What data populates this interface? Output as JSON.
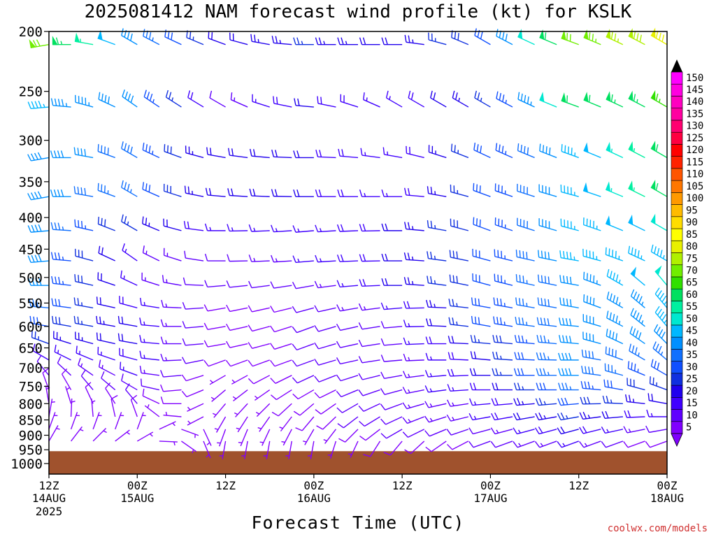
{
  "chart_data": {
    "type": "wind_barb_profile",
    "title": "2025081412 NAM forecast wind profile (kt) for KSLK",
    "xlabel": "Forecast Time (UTC)",
    "credit": "coolwx.com/models",
    "units": "kt",
    "ylevels_hPa": [
      200,
      250,
      300,
      350,
      400,
      450,
      500,
      550,
      600,
      650,
      700,
      750,
      800,
      850,
      900,
      950,
      1000
    ],
    "ylim_hPa": [
      200,
      1040
    ],
    "ground_hPa": 955,
    "x_ticks": [
      {
        "hour": 0,
        "top": "12Z",
        "mid": "14AUG",
        "bottom": "2025"
      },
      {
        "hour": 12,
        "top": "00Z",
        "mid": "15AUG",
        "bottom": ""
      },
      {
        "hour": 24,
        "top": "12Z",
        "mid": "",
        "bottom": ""
      },
      {
        "hour": 36,
        "top": "00Z",
        "mid": "16AUG",
        "bottom": ""
      },
      {
        "hour": 48,
        "top": "12Z",
        "mid": "",
        "bottom": ""
      },
      {
        "hour": 60,
        "top": "00Z",
        "mid": "17AUG",
        "bottom": ""
      },
      {
        "hour": 72,
        "top": "12Z",
        "mid": "",
        "bottom": ""
      },
      {
        "hour": 84,
        "top": "00Z",
        "mid": "18AUG",
        "bottom": ""
      }
    ],
    "xlim_hours": [
      0,
      84
    ],
    "time_step_hours": 3,
    "colorbar": {
      "levels": [
        5,
        10,
        15,
        20,
        25,
        30,
        35,
        40,
        45,
        50,
        55,
        60,
        65,
        70,
        75,
        80,
        85,
        90,
        95,
        100,
        105,
        110,
        115,
        120,
        125,
        130,
        135,
        140,
        145,
        150
      ],
      "colors": [
        "#8000ff",
        "#6000ff",
        "#4000ff",
        "#2000ee",
        "#1030e0",
        "#1050ff",
        "#1070ff",
        "#0090ff",
        "#00b8ff",
        "#00e8d0",
        "#00f0a0",
        "#00e060",
        "#30e000",
        "#70ee00",
        "#b0f000",
        "#e8f000",
        "#ffff00",
        "#ffdd00",
        "#ffbb00",
        "#ff9900",
        "#ff7700",
        "#ff5500",
        "#ff2200",
        "#ff0000",
        "#ff0040",
        "#ff0070",
        "#ff00a0",
        "#ff00c0",
        "#ff00e0",
        "#ff00ff"
      ]
    },
    "wind": {
      "profile_pressures_hPa": [
        210,
        265,
        320,
        370,
        420,
        470,
        515,
        560,
        600,
        640,
        680,
        720,
        760,
        800,
        840,
        880,
        920
      ],
      "times_hours": [
        0,
        3,
        6,
        9,
        12,
        15,
        18,
        21,
        24,
        27,
        30,
        33,
        36,
        39,
        42,
        45,
        48,
        51,
        54,
        57,
        60,
        63,
        66,
        69,
        72,
        75,
        78,
        81,
        84
      ],
      "keyframes": [
        {
          "hour": 0,
          "speed_kt": [
            72,
            45,
            42,
            42,
            40,
            40,
            40,
            35,
            30,
            25,
            15,
            10,
            8,
            6,
            6,
            5,
            5
          ],
          "dir_deg": [
            260,
            265,
            260,
            260,
            265,
            265,
            270,
            275,
            280,
            290,
            300,
            320,
            340,
            350,
            10,
            20,
            30
          ]
        },
        {
          "hour": 12,
          "speed_kt": [
            40,
            40,
            38,
            35,
            25,
            15,
            15,
            18,
            20,
            20,
            18,
            15,
            12,
            10,
            8,
            6,
            5
          ],
          "dir_deg": [
            300,
            305,
            300,
            300,
            300,
            305,
            295,
            285,
            280,
            280,
            285,
            290,
            300,
            320,
            340,
            20,
            60
          ]
        },
        {
          "hour": 24,
          "speed_kt": [
            20,
            12,
            20,
            20,
            15,
            10,
            10,
            8,
            8,
            8,
            8,
            6,
            6,
            6,
            5,
            5,
            5
          ],
          "dir_deg": [
            290,
            300,
            280,
            275,
            270,
            270,
            265,
            260,
            260,
            260,
            250,
            240,
            230,
            220,
            210,
            200,
            190
          ]
        },
        {
          "hour": 36,
          "speed_kt": [
            25,
            20,
            20,
            20,
            15,
            15,
            10,
            10,
            10,
            10,
            10,
            10,
            8,
            8,
            8,
            6,
            6
          ],
          "dir_deg": [
            270,
            275,
            270,
            270,
            265,
            265,
            260,
            255,
            250,
            250,
            250,
            245,
            240,
            230,
            220,
            210,
            190
          ]
        },
        {
          "hour": 48,
          "speed_kt": [
            20,
            15,
            15,
            15,
            20,
            20,
            20,
            15,
            12,
            12,
            12,
            12,
            12,
            12,
            12,
            10,
            8
          ],
          "dir_deg": [
            270,
            300,
            280,
            270,
            270,
            270,
            270,
            265,
            265,
            265,
            265,
            260,
            255,
            250,
            245,
            240,
            220
          ]
        },
        {
          "hour": 60,
          "speed_kt": [
            30,
            25,
            30,
            30,
            30,
            30,
            30,
            30,
            30,
            25,
            20,
            20,
            18,
            15,
            15,
            12,
            10
          ],
          "dir_deg": [
            300,
            300,
            295,
            290,
            290,
            285,
            285,
            280,
            280,
            275,
            275,
            270,
            270,
            265,
            260,
            255,
            250
          ]
        },
        {
          "hour": 72,
          "speed_kt": [
            70,
            60,
            45,
            45,
            45,
            45,
            42,
            40,
            40,
            40,
            40,
            40,
            35,
            30,
            25,
            20,
            15
          ],
          "dir_deg": [
            290,
            290,
            290,
            285,
            285,
            280,
            280,
            280,
            275,
            275,
            270,
            270,
            270,
            265,
            260,
            255,
            250
          ]
        },
        {
          "hour": 84,
          "speed_kt": [
            80,
            65,
            60,
            60,
            50,
            45,
            50,
            45,
            45,
            40,
            35,
            30,
            25,
            20,
            15,
            10,
            8
          ],
          "dir_deg": [
            300,
            300,
            300,
            300,
            300,
            300,
            320,
            320,
            320,
            315,
            310,
            300,
            290,
            280,
            270,
            260,
            250
          ]
        }
      ]
    }
  }
}
